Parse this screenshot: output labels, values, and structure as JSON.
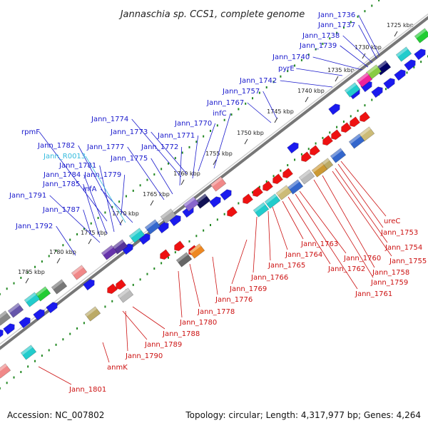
{
  "title": "Jannaschia sp. CCS1, complete genome",
  "footer": {
    "accession": "Accession: NC_007802",
    "topology": "Topology: circular; Length: 4,317,977 bp; Genes: 4,264"
  },
  "colors": {
    "forward_label": "#1a1acc",
    "reverse_label": "#cc1111",
    "rna_label": "#33bbdd",
    "ticks": "#228822",
    "backbone": "#777777"
  },
  "kbp_ticks": [
    "1725 kbp",
    "1730 kbp",
    "1735 kbp",
    "1740 kbp",
    "1745 kbp",
    "1750 kbp",
    "1755 kbp",
    "1760 kbp",
    "1765 kbp",
    "1770 kbp",
    "1775 kbp",
    "1780 kbp",
    "1785 kbp"
  ],
  "forward_labels": [
    "Jann_1736",
    "Jann_1737",
    "Jann_1738",
    "Jann_1739",
    "Jann_1740",
    "pyrE",
    "Jann_1742",
    "Jann_1757",
    "Jann_1767",
    "infC",
    "Jann_1774",
    "Jann_1773",
    "Jann_1770",
    "Jann_1771",
    "rpmF",
    "Jann_1782",
    "Jann_1777",
    "Jann_1772",
    "Jann_1775",
    "Jann_1781",
    "Jann_1784",
    "Jann_1779",
    "Jann_1785",
    "infA",
    "Jann_1791",
    "Jann_1787",
    "Jann_1792"
  ],
  "rna_labels": [
    "Jann_R0013"
  ],
  "reverse_labels": [
    "ureC",
    "Jann_1753",
    "Jann_1754",
    "Jann_1755",
    "Jann_1758",
    "Jann_1759",
    "Jann_1760",
    "Jann_1761",
    "Jann_1762",
    "Jann_1763",
    "Jann_1764",
    "Jann_1765",
    "Jann_1766",
    "Jann_1769",
    "Jann_1776",
    "Jann_1778",
    "Jann_1780",
    "Jann_1788",
    "Jann_1789",
    "Jann_1790",
    "anmK",
    "Jann_1801"
  ]
}
